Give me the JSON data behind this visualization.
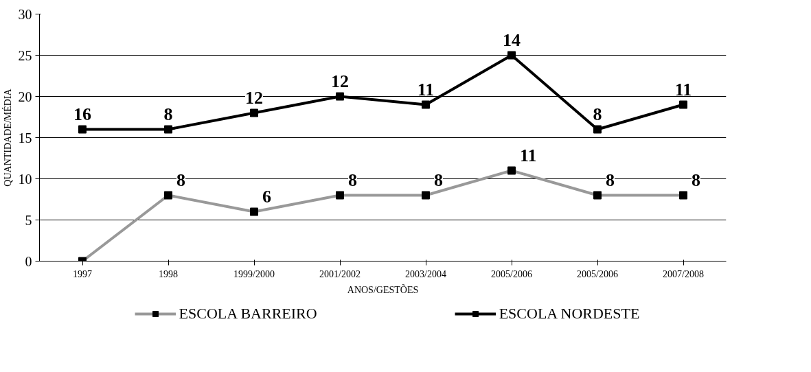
{
  "chart_data": {
    "type": "line",
    "xlabel": "ANOS/GESTÕES",
    "ylabel": "QUANTIDADE/MÉDIA",
    "categories": [
      "1997",
      "1998",
      "1999/2000",
      "2001/2002",
      "2003/2004",
      "2005/2006",
      "2005/2006",
      "2007/2008"
    ],
    "series": [
      {
        "name": "ESCOLA BARREIRO",
        "color": "#999999",
        "values": [
          0,
          8,
          6,
          8,
          8,
          11,
          8,
          8
        ],
        "value_labels": [
          null,
          "8",
          "6",
          "8",
          "8",
          "11",
          "8",
          "8"
        ]
      },
      {
        "name": "ESCOLA NORDESTE",
        "color": "#000000",
        "values": [
          16,
          16,
          18,
          20,
          19,
          25,
          16,
          19
        ]
      }
    ],
    "annotations": [
      "16",
      "8",
      "12",
      "12",
      "11",
      "14",
      "8",
      "11"
    ],
    "ylim": [
      0,
      30
    ],
    "yticks": [
      0,
      5,
      10,
      15,
      20,
      25,
      30
    ],
    "grid": "y",
    "legend": "bottom",
    "marker": "square",
    "line_style": "solid"
  }
}
